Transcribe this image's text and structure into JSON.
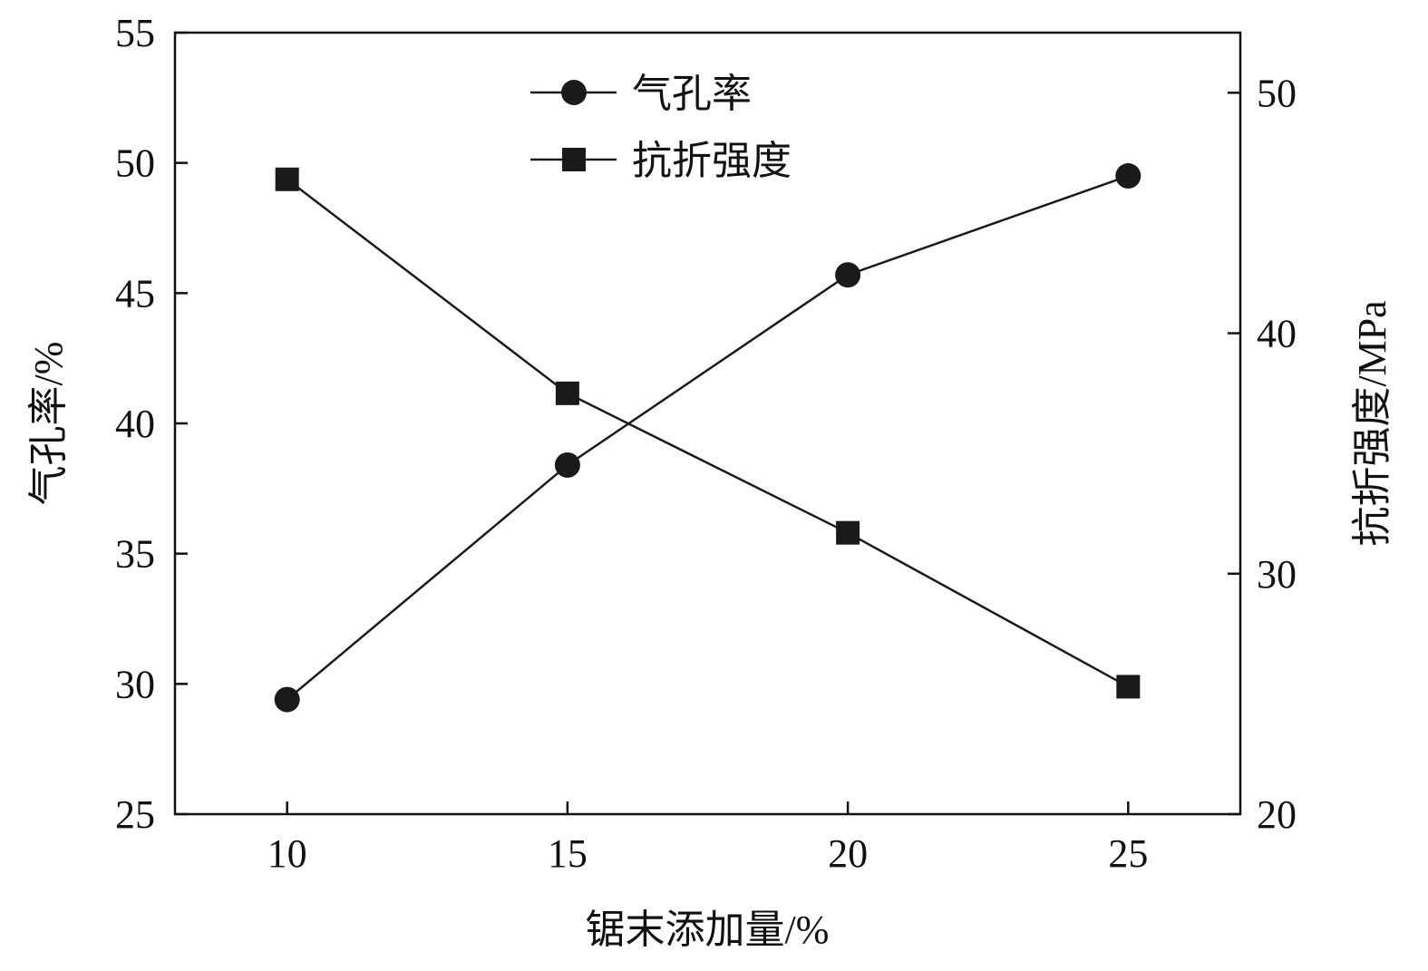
{
  "chart_data": {
    "type": "line",
    "title": "",
    "xlabel": "锯末添加量/%",
    "ylabel": "气孔率/%",
    "y2label": "抗折强度/MPa",
    "x": [
      10,
      15,
      20,
      25
    ],
    "xlim": [
      8,
      27
    ],
    "ylim": [
      25,
      55
    ],
    "y2lim": [
      20,
      52.5
    ],
    "xticks": [
      "10",
      "15",
      "20",
      "25"
    ],
    "yticks": [
      "25",
      "30",
      "35",
      "40",
      "45",
      "50",
      "55"
    ],
    "y2ticks": [
      "20",
      "30",
      "40",
      "50"
    ],
    "grid": false,
    "legend_position": "top-center",
    "series": [
      {
        "name": "气孔率",
        "axis": "left",
        "marker": "circle",
        "values": [
          29.4,
          38.4,
          45.7,
          49.5
        ]
      },
      {
        "name": "抗折强度",
        "axis": "right",
        "marker": "square",
        "values": [
          46.4,
          37.5,
          31.7,
          25.3
        ]
      }
    ],
    "colors": {
      "line": "#1a1a1a"
    }
  }
}
